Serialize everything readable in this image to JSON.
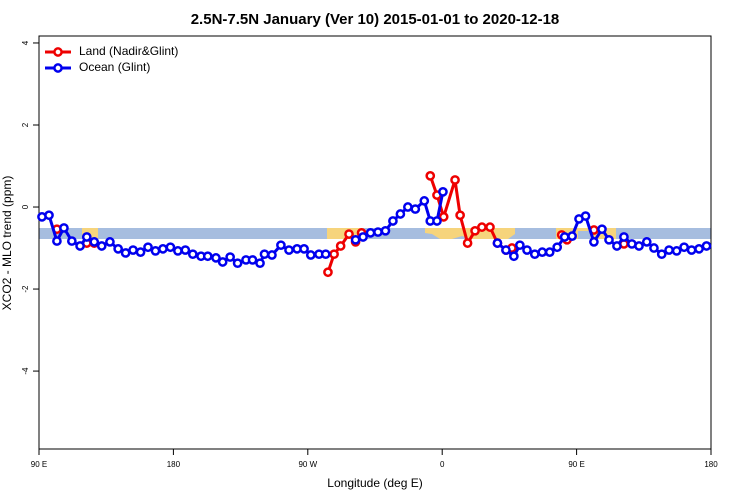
{
  "chart_data": {
    "type": "line",
    "title": "2.5N-7.5N January (Ver 10)   2015-01-01 to 2020-12-18",
    "x_label": "Longitude (deg E)",
    "y_label": "XCO2 - MLO trend (ppm)",
    "xlim": [
      90,
      540
    ],
    "ylim": [
      -5.9,
      4.17
    ],
    "xticks": [
      {
        "value": 90,
        "label": "90 E"
      },
      180,
      {
        "value": 270,
        "label": "90 W"
      },
      {
        "value": 360,
        "label": "0"
      },
      {
        "value": 450,
        "label": "90 E"
      },
      {
        "value": 540,
        "label": "180"
      }
    ],
    "yticks": [
      4,
      2,
      0,
      -2,
      -4
    ],
    "legend": "top-left",
    "series": [
      {
        "name": "Land (Nadir&Glint)",
        "color": "#ee0000",
        "x": [
          102,
          null,
          122,
          127,
          null,
          283.5,
          287.6,
          292,
          297.6,
          302,
          306,
          null,
          352,
          356.5,
          361,
          368.6,
          372,
          377,
          382,
          386.6,
          392,
          397,
          402.7,
          406.7,
          null,
          440,
          443.6,
          null,
          461.6,
          null,
          481.7
        ],
        "values": [
          -0.54,
          null,
          -0.88,
          -0.88,
          null,
          -1.59,
          -1.15,
          -0.95,
          -0.66,
          -0.85,
          -0.63,
          null,
          0.76,
          0.29,
          -0.24,
          0.66,
          -0.2,
          -0.88,
          -0.58,
          -0.49,
          -0.49,
          -0.88,
          -1.05,
          -1.0,
          null,
          -0.68,
          -0.8,
          null,
          -0.56,
          null,
          -0.9
        ]
      },
      {
        "name": "Ocean (Glint)",
        "color": "#0000ee",
        "x": [
          92,
          96.7,
          102,
          106.7,
          112,
          117.5,
          122,
          127,
          132,
          137.5,
          143,
          148,
          153,
          158,
          163,
          168,
          173,
          178,
          183,
          188,
          193,
          198.5,
          203,
          208.5,
          213,
          218,
          223,
          228.6,
          233,
          238,
          241,
          246,
          252,
          257.4,
          262.8,
          267.5,
          272,
          277.5,
          282,
          null,
          302,
          307,
          312,
          317,
          322,
          327,
          332,
          337,
          342,
          348,
          352,
          356.5,
          360.5,
          null,
          397,
          402.7,
          408,
          412,
          416.8,
          422,
          427,
          432,
          437,
          442,
          447,
          451.6,
          456,
          461.6,
          467,
          471.7,
          477,
          481.7,
          487,
          491.8,
          497,
          501.8,
          507,
          511.9,
          517,
          522,
          527,
          532,
          537
        ],
        "values": [
          -0.24,
          -0.2,
          -0.83,
          -0.51,
          -0.83,
          -0.95,
          -0.73,
          -0.85,
          -0.95,
          -0.85,
          -1.02,
          -1.12,
          -1.05,
          -1.1,
          -0.98,
          -1.07,
          -1.02,
          -0.98,
          -1.07,
          -1.05,
          -1.15,
          -1.2,
          -1.2,
          -1.24,
          -1.34,
          -1.22,
          -1.37,
          -1.29,
          -1.29,
          -1.37,
          -1.15,
          -1.17,
          -0.93,
          -1.05,
          -1.02,
          -1.02,
          -1.17,
          -1.15,
          -1.15,
          null,
          -0.8,
          -0.73,
          -0.63,
          -0.61,
          -0.58,
          -0.34,
          -0.17,
          0,
          -0.05,
          0.15,
          -0.34,
          -0.34,
          0.37,
          null,
          -0.88,
          -1.05,
          -1.2,
          -0.93,
          -1.05,
          -1.15,
          -1.1,
          -1.1,
          -0.98,
          -0.73,
          -0.71,
          -0.29,
          -0.22,
          -0.85,
          -0.54,
          -0.8,
          -0.95,
          -0.73,
          -0.9,
          -0.95,
          -0.85,
          -1.0,
          -1.15,
          -1.05,
          -1.07,
          -0.98,
          -1.05,
          -1.02,
          -0.95
        ]
      }
    ]
  }
}
